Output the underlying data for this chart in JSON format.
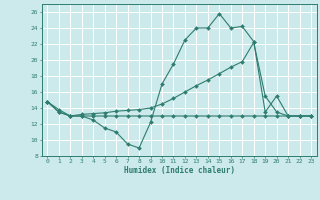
{
  "xlabel": "Humidex (Indice chaleur)",
  "bg_color": "#cce9ec",
  "grid_color": "#ffffff",
  "line_color": "#2e7d6e",
  "xlim": [
    -0.5,
    23.5
  ],
  "ylim": [
    8,
    27
  ],
  "yticks": [
    8,
    10,
    12,
    14,
    16,
    18,
    20,
    22,
    24,
    26
  ],
  "xticks": [
    0,
    1,
    2,
    3,
    4,
    5,
    6,
    7,
    8,
    9,
    10,
    11,
    12,
    13,
    14,
    15,
    16,
    17,
    18,
    19,
    20,
    21,
    22,
    23
  ],
  "series1_x": [
    0,
    1,
    2,
    3,
    4,
    5,
    6,
    7,
    8,
    9,
    10,
    11,
    12,
    13,
    14,
    15,
    16,
    17,
    18,
    19,
    20,
    21,
    22,
    23
  ],
  "series1_y": [
    14.8,
    13.8,
    13.0,
    13.0,
    12.5,
    11.5,
    11.0,
    9.5,
    9.0,
    12.2,
    17.0,
    19.5,
    22.5,
    24.0,
    24.0,
    25.8,
    24.0,
    24.2,
    22.3,
    13.5,
    15.5,
    13.0,
    13.0,
    13.0
  ],
  "series2_x": [
    0,
    1,
    2,
    3,
    4,
    5,
    6,
    7,
    8,
    9,
    10,
    11,
    12,
    13,
    14,
    15,
    16,
    17,
    18,
    19,
    20,
    21,
    22,
    23
  ],
  "series2_y": [
    14.8,
    13.5,
    13.0,
    13.2,
    13.3,
    13.4,
    13.6,
    13.7,
    13.8,
    14.0,
    14.5,
    15.2,
    16.0,
    16.8,
    17.5,
    18.3,
    19.1,
    19.8,
    22.2,
    15.5,
    13.5,
    13.0,
    13.0,
    13.0
  ],
  "series3_x": [
    0,
    1,
    2,
    3,
    4,
    5,
    6,
    7,
    8,
    9,
    10,
    11,
    12,
    13,
    14,
    15,
    16,
    17,
    18,
    19,
    20,
    21,
    22,
    23
  ],
  "series3_y": [
    14.8,
    13.5,
    13.0,
    13.0,
    13.0,
    13.0,
    13.0,
    13.0,
    13.0,
    13.0,
    13.0,
    13.0,
    13.0,
    13.0,
    13.0,
    13.0,
    13.0,
    13.0,
    13.0,
    13.0,
    13.0,
    13.0,
    13.0,
    13.0
  ]
}
